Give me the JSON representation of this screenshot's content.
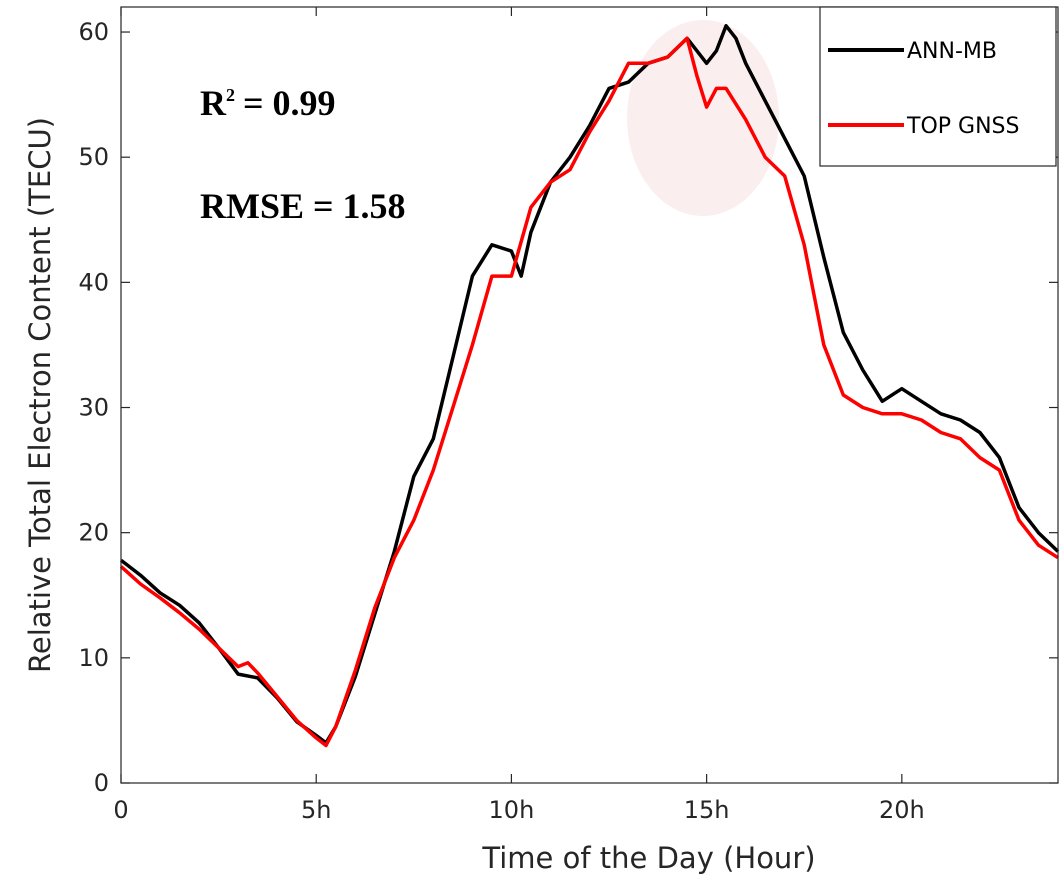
{
  "chart_data": {
    "type": "line",
    "title": "",
    "xlabel": "Time of the Day (Hour)",
    "ylabel": "Relative Total Electron Content (TECU)",
    "xlim": [
      0,
      24
    ],
    "ylim": [
      0,
      62
    ],
    "x_ticks": [
      {
        "value": 0,
        "label": "0"
      },
      {
        "value": 5,
        "label": "5h"
      },
      {
        "value": 10,
        "label": "10h"
      },
      {
        "value": 15,
        "label": "15h"
      },
      {
        "value": 20,
        "label": "20h"
      }
    ],
    "y_ticks": [
      {
        "value": 0,
        "label": "0"
      },
      {
        "value": 10,
        "label": "10"
      },
      {
        "value": 20,
        "label": "20"
      },
      {
        "value": 30,
        "label": "30"
      },
      {
        "value": 40,
        "label": "40"
      },
      {
        "value": 50,
        "label": "50"
      },
      {
        "value": 60,
        "label": "60"
      }
    ],
    "grid": false,
    "legend_position": "top-right",
    "series": [
      {
        "name": "ANN-MB",
        "color": "#000000",
        "points": [
          [
            0,
            17.8
          ],
          [
            0.5,
            16.6
          ],
          [
            1,
            15.2
          ],
          [
            1.5,
            14.2
          ],
          [
            2,
            12.8
          ],
          [
            2.5,
            10.8
          ],
          [
            3,
            8.7
          ],
          [
            3.5,
            8.4
          ],
          [
            4,
            6.8
          ],
          [
            4.5,
            4.9
          ],
          [
            5,
            3.8
          ],
          [
            5.25,
            3.2
          ],
          [
            5.5,
            4.5
          ],
          [
            6,
            8.5
          ],
          [
            6.5,
            13.5
          ],
          [
            7,
            18.5
          ],
          [
            7.5,
            24.5
          ],
          [
            8,
            27.5
          ],
          [
            8.5,
            34
          ],
          [
            9,
            40.5
          ],
          [
            9.5,
            43
          ],
          [
            10,
            42.5
          ],
          [
            10.25,
            40.5
          ],
          [
            10.5,
            44
          ],
          [
            11,
            48
          ],
          [
            11.5,
            50
          ],
          [
            12,
            52.5
          ],
          [
            12.5,
            55.5
          ],
          [
            13,
            56
          ],
          [
            13.5,
            57.5
          ],
          [
            14,
            58
          ],
          [
            14.5,
            59.5
          ],
          [
            14.75,
            58.5
          ],
          [
            15,
            57.5
          ],
          [
            15.25,
            58.5
          ],
          [
            15.5,
            60.5
          ],
          [
            15.75,
            59.5
          ],
          [
            16,
            57.5
          ],
          [
            16.5,
            54.5
          ],
          [
            17,
            51.5
          ],
          [
            17.5,
            48.5
          ],
          [
            18,
            42
          ],
          [
            18.5,
            36
          ],
          [
            19,
            33
          ],
          [
            19.5,
            30.5
          ],
          [
            20,
            31.5
          ],
          [
            20.5,
            30.5
          ],
          [
            21,
            29.5
          ],
          [
            21.5,
            29
          ],
          [
            22,
            28
          ],
          [
            22.5,
            26
          ],
          [
            23,
            22
          ],
          [
            23.5,
            20
          ],
          [
            24,
            18.5
          ]
        ]
      },
      {
        "name": "TOP GNSS",
        "color": "#ff0000",
        "points": [
          [
            0,
            17.3
          ],
          [
            0.5,
            15.9
          ],
          [
            1,
            14.8
          ],
          [
            1.5,
            13.6
          ],
          [
            2,
            12.3
          ],
          [
            2.5,
            10.8
          ],
          [
            3,
            9.3
          ],
          [
            3.25,
            9.6
          ],
          [
            3.5,
            8.8
          ],
          [
            4,
            6.9
          ],
          [
            4.5,
            5
          ],
          [
            5,
            3.6
          ],
          [
            5.25,
            3
          ],
          [
            5.5,
            4.5
          ],
          [
            6,
            9
          ],
          [
            6.5,
            14
          ],
          [
            7,
            18
          ],
          [
            7.5,
            21
          ],
          [
            8,
            25
          ],
          [
            8.5,
            30
          ],
          [
            9,
            35
          ],
          [
            9.5,
            40.5
          ],
          [
            10,
            40.5
          ],
          [
            10.5,
            46
          ],
          [
            11,
            48
          ],
          [
            11.5,
            49
          ],
          [
            12,
            52
          ],
          [
            12.5,
            54.5
          ],
          [
            13,
            57.5
          ],
          [
            13.5,
            57.5
          ],
          [
            14,
            58
          ],
          [
            14.5,
            59.5
          ],
          [
            14.75,
            56.5
          ],
          [
            15,
            54
          ],
          [
            15.25,
            55.5
          ],
          [
            15.5,
            55.5
          ],
          [
            16,
            53
          ],
          [
            16.5,
            50
          ],
          [
            17,
            48.5
          ],
          [
            17.5,
            43
          ],
          [
            18,
            35
          ],
          [
            18.5,
            31
          ],
          [
            19,
            30
          ],
          [
            19.5,
            29.5
          ],
          [
            20,
            29.5
          ],
          [
            20.5,
            29
          ],
          [
            21,
            28
          ],
          [
            21.5,
            27.5
          ],
          [
            22,
            26
          ],
          [
            22.5,
            25
          ],
          [
            23,
            21
          ],
          [
            23.5,
            19
          ],
          [
            24,
            18
          ]
        ]
      }
    ],
    "annotations": {
      "r2_base": "R",
      "r2_sup": "2",
      "r2_value": "= 0.99",
      "rmse": "RMSE = 1.58",
      "highlight_color": "#f7e3e3"
    }
  }
}
